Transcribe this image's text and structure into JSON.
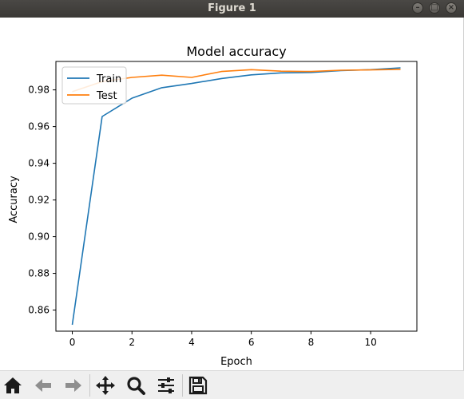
{
  "window": {
    "title": "Figure 1"
  },
  "toolbar": {
    "icons": [
      "home-icon",
      "back-arrow-icon",
      "forward-arrow-icon",
      "pan-move-icon",
      "zoom-magnifier-icon",
      "subplots-config-icon",
      "save-floppy-icon"
    ]
  },
  "chart_data": {
    "type": "line",
    "title": "Model accuracy",
    "xlabel": "Epoch",
    "ylabel": "Accuracy",
    "xlim": [
      -0.55,
      11.55
    ],
    "ylim": [
      0.8485,
      0.9955
    ],
    "xticks": [
      0,
      2,
      4,
      6,
      8,
      10
    ],
    "yticks": [
      0.86,
      0.88,
      0.9,
      0.92,
      0.94,
      0.96,
      0.98
    ],
    "ytick_labels": [
      "0.86",
      "0.88",
      "0.90",
      "0.92",
      "0.94",
      "0.96",
      "0.98"
    ],
    "grid": false,
    "legend_position": "upper-left",
    "x": [
      0,
      1,
      2,
      3,
      4,
      5,
      6,
      7,
      8,
      9,
      10,
      11
    ],
    "series": [
      {
        "name": "Train",
        "color": "#1f77b4",
        "values": [
          0.852,
          0.9655,
          0.9755,
          0.9812,
          0.9835,
          0.9862,
          0.9882,
          0.9893,
          0.9895,
          0.9905,
          0.991,
          0.992
        ]
      },
      {
        "name": "Test",
        "color": "#ff7f0e",
        "values": [
          0.979,
          0.9845,
          0.9868,
          0.988,
          0.9868,
          0.99,
          0.991,
          0.9902,
          0.99,
          0.9907,
          0.9909,
          0.9912
        ]
      }
    ]
  }
}
